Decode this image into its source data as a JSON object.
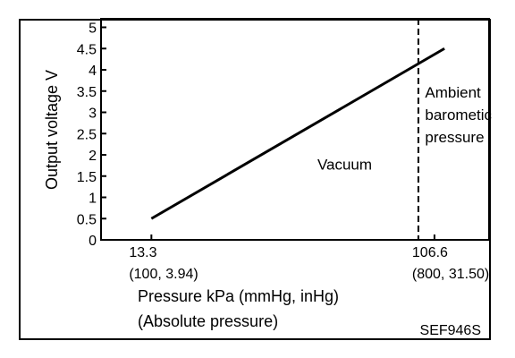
{
  "chart_data": {
    "type": "line",
    "ylabel": "Output voltage V",
    "xlabel_line1": "Pressure kPa (mmHg, inHg)",
    "xlabel_line2": "(Absolute pressure)",
    "figure_id": "SEF946S",
    "ylim": [
      0,
      5.2
    ],
    "yticks": [
      0,
      0.5,
      1,
      1.5,
      2,
      2.5,
      3,
      3.5,
      4,
      4.5,
      5
    ],
    "ytick_labels": [
      "0",
      "0.5",
      "1",
      "1.5",
      "2",
      "2.5",
      "3",
      "3.5",
      "4",
      "4.5",
      "5"
    ],
    "xlim": [
      -3.3,
      124.6
    ],
    "xticks": [
      {
        "value": 13.3,
        "label": "13.3",
        "sublabel": "(100, 3.94)"
      },
      {
        "value": 106.6,
        "label": "106.6",
        "sublabel": "(800, 31.50)"
      }
    ],
    "series": [
      {
        "x": [
          13.3,
          109.9
        ],
        "y": [
          0.5,
          4.5
        ]
      }
    ],
    "reference_line": {
      "x": 101.3,
      "style": "dashed"
    },
    "annotations": [
      {
        "text": "Vacuum",
        "x": 68,
        "y": 1.65
      },
      {
        "text_lines": [
          "Ambient",
          "barometic",
          "pressure"
        ],
        "x": 103.5,
        "y": 3.35
      }
    ],
    "grid": false,
    "legend": "none"
  }
}
